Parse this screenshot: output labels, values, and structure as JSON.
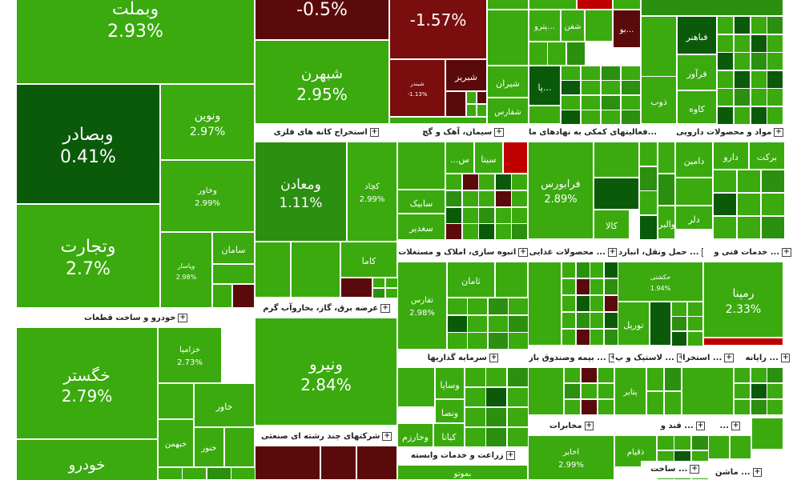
{
  "chart_data": {
    "type": "treemap",
    "colors": {
      "light": "#3aaa0f",
      "mid": "#2b8f0f",
      "dark": "#0a5a0a",
      "neg_dark": "#5a0a0a",
      "neg": "#7a0d0d",
      "neg_bright": "#c00000"
    },
    "sectors": [
      {
        "name": "خودرو و ساخت قطعات"
      },
      {
        "name": "استخراج کانه های فلزی"
      },
      {
        "name": "عرضه برق، گاز، بخاروآب گرم"
      },
      {
        "name": "شرکتهای چند رشته ای صنعتی"
      },
      {
        "name": "سیمان، آهک و گچ"
      },
      {
        "name": "فعالیتهای کمکی به نهادهای ما..."
      },
      {
        "name": "مواد و محصولات دارویی"
      },
      {
        "name": "انبوه سازی، املاک و مستغلات"
      },
      {
        "name": "محصولات غذایی ..."
      },
      {
        "name": "حمل ونقل، انبارد ..."
      },
      {
        "name": "خدمات فنی و ..."
      },
      {
        "name": "سرمایه گذاریها"
      },
      {
        "name": "بیمه وصندوق باز ..."
      },
      {
        "name": "لاستیک و پ ..."
      },
      {
        "name": "استخرا ..."
      },
      {
        "name": "رایانه ..."
      },
      {
        "name": "زراعت و خدمات وابسته"
      },
      {
        "name": "مخابرات"
      },
      {
        "name": "قند و ..."
      },
      {
        "name": "..."
      },
      {
        "name": "ساخت ..."
      },
      {
        "name": "ماشن ..."
      }
    ],
    "tiles": [
      {
        "symbol": "وبملت",
        "change": "2.93%",
        "value": 2.93
      },
      {
        "symbol": "",
        "change": "-0.5%",
        "value": -0.5
      },
      {
        "symbol": "",
        "change": "-1.57%",
        "value": -1.57
      },
      {
        "symbol": "وبصادر",
        "change": "0.41%",
        "value": 0.41
      },
      {
        "symbol": "وتجارت",
        "change": "2.7%",
        "value": 2.7
      },
      {
        "symbol": "ونوین",
        "change": "2.97%",
        "value": 2.97
      },
      {
        "symbol": "وخاور",
        "change": "2.99%",
        "value": 2.99
      },
      {
        "symbol": "وپاسار",
        "change": "2.98%",
        "value": 2.98
      },
      {
        "symbol": "سامان",
        "change": "",
        "value": null
      },
      {
        "symbol": "شبهرن",
        "change": "2.95%",
        "value": 2.95
      },
      {
        "symbol": "شبندر",
        "change": "-1.13%",
        "value": -1.13
      },
      {
        "symbol": "شبریز",
        "change": "",
        "value": null
      },
      {
        "symbol": "پترو...",
        "change": "",
        "value": null
      },
      {
        "symbol": "شفن",
        "change": "",
        "value": null
      },
      {
        "symbol": "شیران",
        "change": "",
        "value": null
      },
      {
        "symbol": "شفارس",
        "change": "",
        "value": null
      },
      {
        "symbol": "بو...",
        "change": "",
        "value": null
      },
      {
        "symbol": "پا...",
        "change": "",
        "value": null
      },
      {
        "symbol": "فباهنر",
        "change": "",
        "value": null
      },
      {
        "symbol": "فرآور",
        "change": "",
        "value": null
      },
      {
        "symbol": "ذوب",
        "change": "",
        "value": null
      },
      {
        "symbol": "کاوه",
        "change": "",
        "value": null
      },
      {
        "symbol": "ومعادن",
        "change": "1.11%",
        "value": 1.11
      },
      {
        "symbol": "کچاد",
        "change": "2.99%",
        "value": 2.99
      },
      {
        "symbol": "کاما",
        "change": "",
        "value": null
      },
      {
        "symbol": "ونیرو",
        "change": "2.84%",
        "value": 2.84
      },
      {
        "symbol": "سیتا",
        "change": "",
        "value": null
      },
      {
        "symbol": "...س",
        "change": "",
        "value": null
      },
      {
        "symbol": "سابیک",
        "change": "",
        "value": null
      },
      {
        "symbol": "سغدیر",
        "change": "",
        "value": null
      },
      {
        "symbol": "فرابورس",
        "change": "2.89%",
        "value": 2.89
      },
      {
        "symbol": "کالا",
        "change": "",
        "value": null
      },
      {
        "symbol": "برکت",
        "change": "",
        "value": null
      },
      {
        "symbol": "دارو",
        "change": "",
        "value": null
      },
      {
        "symbol": "دامین",
        "change": "",
        "value": null
      },
      {
        "symbol": "والبر",
        "change": "",
        "value": null
      },
      {
        "symbol": "دلر",
        "change": "",
        "value": null
      },
      {
        "symbol": "ثامان",
        "change": "",
        "value": null
      },
      {
        "symbol": "تفارس",
        "change": "2.98%",
        "value": 2.98
      },
      {
        "symbol": "حکشتی",
        "change": "1.94%",
        "value": 1.94
      },
      {
        "symbol": "تورپل",
        "change": "",
        "value": null
      },
      {
        "symbol": "رمپنا",
        "change": "2.33%",
        "value": 2.33
      },
      {
        "symbol": "وساپا",
        "change": "",
        "value": null
      },
      {
        "symbol": "ونصا",
        "change": "",
        "value": null
      },
      {
        "symbol": "کیانا",
        "change": "",
        "value": null
      },
      {
        "symbol": "وخارزم",
        "change": "",
        "value": null
      },
      {
        "symbol": "پتایر",
        "change": "",
        "value": null
      },
      {
        "symbol": "خگستر",
        "change": "2.79%",
        "value": 2.79
      },
      {
        "symbol": "خزامیا",
        "change": "2.73%",
        "value": 2.73
      },
      {
        "symbol": "خاور",
        "change": "",
        "value": null
      },
      {
        "symbol": "خبهمن",
        "change": "",
        "value": null
      },
      {
        "symbol": "خنور",
        "change": "",
        "value": null
      },
      {
        "symbol": "خودرو",
        "change": "",
        "value": null
      },
      {
        "symbol": "اخابر",
        "change": "2.99%",
        "value": 2.99
      },
      {
        "symbol": "بموتو",
        "change": "",
        "value": null
      },
      {
        "symbol": "ذقیام",
        "change": "",
        "value": null
      }
    ]
  }
}
